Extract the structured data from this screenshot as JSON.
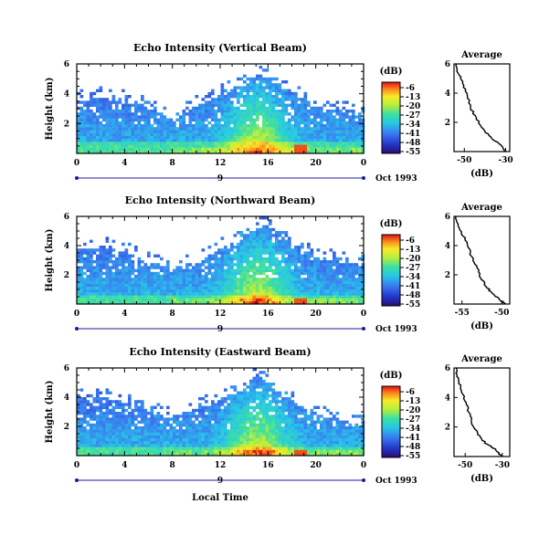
{
  "chart_data": [
    {
      "type": "heatmap",
      "title": "Echo Intensity (Vertical Beam)",
      "ylabel": "Height (km)",
      "x_ticks": [
        "0",
        "4",
        "8",
        "12",
        "16",
        "20",
        "0"
      ],
      "y_ticks": [
        "6",
        "4",
        "2"
      ],
      "xlim": [
        0,
        24
      ],
      "ylim": [
        0,
        6
      ],
      "date_axis": {
        "label": "9",
        "caption": "Oct 1993"
      },
      "colorbar": {
        "unit": "(dB)",
        "ticks": [
          "-6",
          "-13",
          "-20",
          "-27",
          "-34",
          "-41",
          "-48",
          "-55"
        ]
      },
      "cloud_top_km": [
        [
          0,
          3.6
        ],
        [
          2,
          3.8
        ],
        [
          4,
          3.5
        ],
        [
          6,
          3.0
        ],
        [
          8,
          2.2
        ],
        [
          10,
          3.2
        ],
        [
          12,
          4.0
        ],
        [
          14,
          4.6
        ],
        [
          15,
          5.4
        ],
        [
          16,
          5.0
        ],
        [
          18,
          4.0
        ],
        [
          20,
          3.0
        ],
        [
          22,
          2.8
        ],
        [
          24,
          2.6
        ]
      ]
    },
    {
      "type": "heatmap",
      "title": "Echo Intensity (Northward Beam)",
      "ylabel": "Height (km)",
      "x_ticks": [
        "0",
        "4",
        "8",
        "12",
        "16",
        "20",
        "0"
      ],
      "y_ticks": [
        "6",
        "4",
        "2"
      ],
      "xlim": [
        0,
        24
      ],
      "ylim": [
        0,
        6
      ],
      "date_axis": {
        "label": "9",
        "caption": "Oct 1993"
      },
      "colorbar": {
        "unit": "(dB)",
        "ticks": [
          "-6",
          "-13",
          "-20",
          "-27",
          "-34",
          "-41",
          "-48",
          "-55"
        ]
      },
      "cloud_top_km": [
        [
          0,
          3.8
        ],
        [
          2,
          3.9
        ],
        [
          4,
          3.5
        ],
        [
          6,
          2.8
        ],
        [
          8,
          2.4
        ],
        [
          10,
          2.8
        ],
        [
          12,
          3.8
        ],
        [
          14,
          4.4
        ],
        [
          15,
          5.2
        ],
        [
          16,
          5.3
        ],
        [
          18,
          4.0
        ],
        [
          20,
          3.2
        ],
        [
          22,
          3.0
        ],
        [
          24,
          2.6
        ]
      ]
    },
    {
      "type": "heatmap",
      "title": "Echo Intensity (Eastward Beam)",
      "ylabel": "Height (km)",
      "xlabel": "Local Time",
      "x_ticks": [
        "0",
        "4",
        "8",
        "12",
        "16",
        "20",
        "0"
      ],
      "y_ticks": [
        "6",
        "4",
        "2"
      ],
      "xlim": [
        0,
        24
      ],
      "ylim": [
        0,
        6
      ],
      "date_axis": {
        "label": "9",
        "caption": "Oct 1993"
      },
      "colorbar": {
        "unit": "(dB)",
        "ticks": [
          "-6",
          "-13",
          "-20",
          "-27",
          "-34",
          "-41",
          "-48",
          "-55"
        ]
      },
      "cloud_top_km": [
        [
          0,
          3.8
        ],
        [
          2,
          4.0
        ],
        [
          4,
          3.6
        ],
        [
          6,
          3.0
        ],
        [
          8,
          2.6
        ],
        [
          10,
          3.2
        ],
        [
          12,
          3.8
        ],
        [
          14,
          4.6
        ],
        [
          15,
          5.6
        ],
        [
          16,
          4.8
        ],
        [
          18,
          3.6
        ],
        [
          20,
          2.8
        ],
        [
          22,
          2.4
        ],
        [
          24,
          2.0
        ]
      ]
    },
    {
      "type": "line",
      "title": "Average",
      "xlabel": "(dB)",
      "x_ticks": [
        "-50",
        "-30"
      ],
      "y_ticks": [
        "6",
        "4",
        "2"
      ],
      "xlim": [
        -55,
        -28
      ],
      "ylim": [
        0,
        6
      ],
      "points": [
        [
          -54,
          6.0
        ],
        [
          -53,
          5.4
        ],
        [
          -51,
          4.8
        ],
        [
          -49,
          4.0
        ],
        [
          -47,
          3.0
        ],
        [
          -44,
          2.2
        ],
        [
          -40,
          1.4
        ],
        [
          -36,
          0.8
        ],
        [
          -32,
          0.4
        ],
        [
          -30,
          0.0
        ]
      ]
    },
    {
      "type": "line",
      "title": "Average",
      "xlabel": "(dB)",
      "x_ticks": [
        "-55",
        "-50"
      ],
      "y_ticks": [
        "6",
        "4",
        "2"
      ],
      "xlim": [
        -56,
        -49
      ],
      "ylim": [
        0,
        6
      ],
      "points": [
        [
          -55.8,
          6.0
        ],
        [
          -55.3,
          5.2
        ],
        [
          -54.6,
          4.4
        ],
        [
          -53.9,
          3.4
        ],
        [
          -53.2,
          2.6
        ],
        [
          -52.6,
          1.8
        ],
        [
          -51.8,
          1.1
        ],
        [
          -50.9,
          0.6
        ],
        [
          -50.0,
          0.2
        ],
        [
          -49.5,
          0.0
        ]
      ]
    },
    {
      "type": "line",
      "title": "Average",
      "xlabel": "(dB)",
      "x_ticks": [
        "-50",
        "-30"
      ],
      "y_ticks": [
        "6",
        "4",
        "2"
      ],
      "xlim": [
        -56,
        -26
      ],
      "ylim": [
        0,
        6
      ],
      "points": [
        [
          -55,
          6.0
        ],
        [
          -54,
          5.3
        ],
        [
          -52,
          4.6
        ],
        [
          -50,
          3.8
        ],
        [
          -48,
          3.0
        ],
        [
          -46,
          2.2
        ],
        [
          -43,
          1.5
        ],
        [
          -39,
          0.9
        ],
        [
          -34,
          0.5
        ],
        [
          -30,
          0.0
        ]
      ]
    }
  ]
}
